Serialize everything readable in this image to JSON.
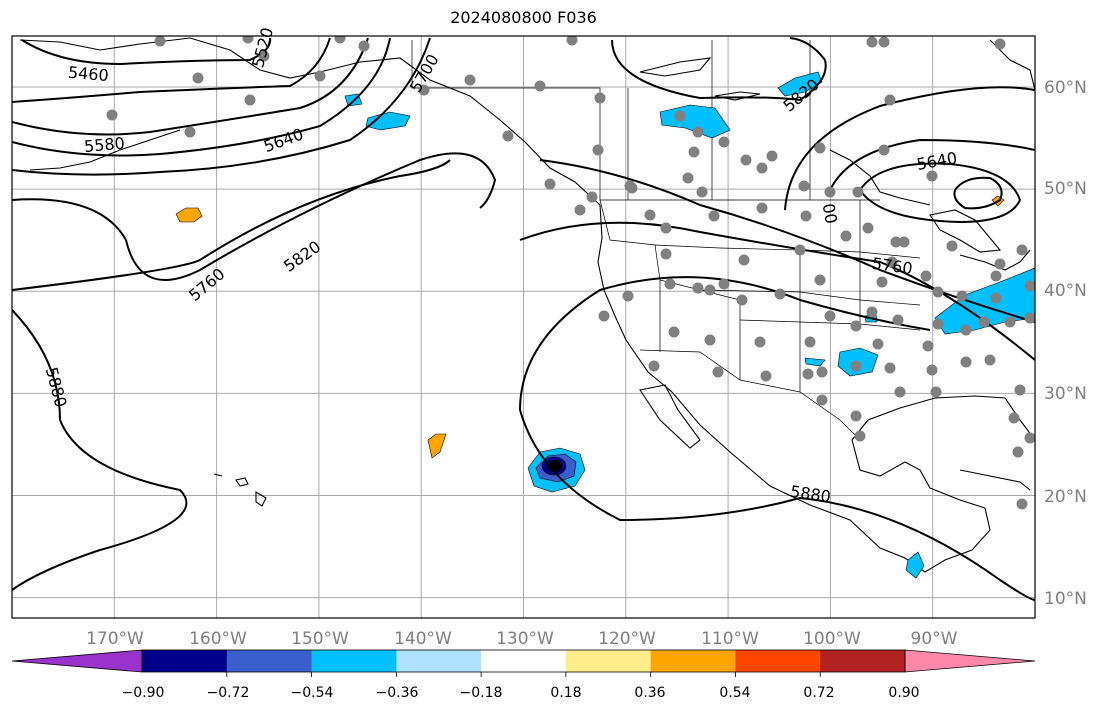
{
  "title": "2024080800 F036",
  "map": {
    "lon_range": [
      -180,
      -80
    ],
    "lat_range": [
      8,
      65
    ],
    "grid": true,
    "longitude_labels": [
      "170°W",
      "160°W",
      "150°W",
      "140°W",
      "130°W",
      "120°W",
      "110°W",
      "100°W",
      "90°W"
    ],
    "latitude_labels": [
      "10°N",
      "20°N",
      "30°N",
      "40°N",
      "50°N",
      "60°N"
    ],
    "contour_labels": [
      "5460",
      "5520",
      "5580",
      "5640",
      "5700",
      "5760",
      "5820",
      "5880",
      "5820",
      "5640",
      "5760",
      "5880",
      "00"
    ],
    "station_marker_color": "#808080",
    "contour_color": "#000000"
  },
  "colorbar": {
    "ticks": [
      "−0.90",
      "−0.72",
      "−0.54",
      "−0.36",
      "−0.18",
      "0.18",
      "0.36",
      "0.54",
      "0.72",
      "0.90"
    ],
    "colors": [
      "#9933cc",
      "#00008b",
      "#3a5fcd",
      "#00bfff",
      "#b0e2ff",
      "#ffffff",
      "#ffec8b",
      "#ffa500",
      "#ff4500",
      "#b22222",
      "#ff88aa"
    ]
  }
}
